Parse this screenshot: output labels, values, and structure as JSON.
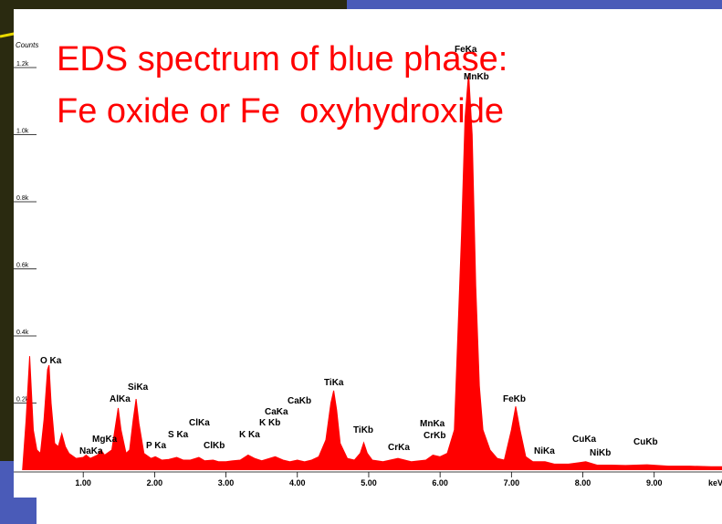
{
  "chart_data": {
    "type": "area",
    "title_lines": [
      "EDS spectrum of blue phase:",
      "Fe oxide or Fe  oxyhydroxide"
    ],
    "y_label": "Counts",
    "x_label": "keV",
    "color": "#ff0000",
    "xlim": [
      0,
      9.95
    ],
    "ylim": [
      0,
      1200
    ],
    "xticks": [
      {
        "value": 1,
        "label": "1.00"
      },
      {
        "value": 2,
        "label": "2.00"
      },
      {
        "value": 3,
        "label": "3.00"
      },
      {
        "value": 4,
        "label": "4.00"
      },
      {
        "value": 5,
        "label": "5.00"
      },
      {
        "value": 6,
        "label": "6.00"
      },
      {
        "value": 7,
        "label": "7.00"
      },
      {
        "value": 8,
        "label": "8.00"
      },
      {
        "value": 9,
        "label": "9.00"
      }
    ],
    "yticks": [
      {
        "value": 200,
        "label": "0.2k"
      },
      {
        "value": 400,
        "label": "0.4k"
      },
      {
        "value": 600,
        "label": "0.6k"
      },
      {
        "value": 800,
        "label": "0.8k"
      },
      {
        "value": 1000,
        "label": "1.0k"
      },
      {
        "value": 1200,
        "label": "1.2k"
      }
    ],
    "x": [
      0.15,
      0.2,
      0.25,
      0.3,
      0.35,
      0.4,
      0.45,
      0.5,
      0.52,
      0.55,
      0.6,
      0.65,
      0.7,
      0.75,
      0.8,
      0.9,
      1.0,
      1.04,
      1.1,
      1.2,
      1.25,
      1.3,
      1.4,
      1.45,
      1.49,
      1.53,
      1.6,
      1.65,
      1.7,
      1.74,
      1.78,
      1.85,
      1.95,
      2.01,
      2.1,
      2.2,
      2.31,
      2.4,
      2.5,
      2.62,
      2.7,
      2.82,
      2.9,
      3.0,
      3.1,
      3.2,
      3.31,
      3.4,
      3.5,
      3.69,
      3.8,
      3.9,
      4.0,
      4.1,
      4.2,
      4.3,
      4.4,
      4.47,
      4.51,
      4.55,
      4.6,
      4.7,
      4.8,
      4.88,
      4.93,
      4.98,
      5.05,
      5.2,
      5.41,
      5.6,
      5.8,
      5.9,
      6.0,
      6.1,
      6.2,
      6.3,
      6.35,
      6.4,
      6.45,
      6.5,
      6.55,
      6.6,
      6.7,
      6.8,
      6.9,
      7.0,
      7.06,
      7.12,
      7.2,
      7.3,
      7.47,
      7.6,
      7.8,
      8.04,
      8.2,
      8.4,
      8.6,
      8.9,
      9.2,
      9.5,
      9.8,
      9.95
    ],
    "values": [
      0,
      150,
      340,
      120,
      60,
      50,
      150,
      300,
      313,
      200,
      80,
      70,
      109,
      70,
      50,
      35,
      38,
      45,
      35,
      45,
      60,
      45,
      60,
      130,
      185,
      120,
      50,
      60,
      150,
      212,
      140,
      50,
      35,
      40,
      30,
      32,
      38,
      30,
      30,
      38,
      28,
      30,
      25,
      25,
      28,
      30,
      45,
      35,
      28,
      40,
      30,
      25,
      30,
      25,
      30,
      40,
      90,
      200,
      237,
      180,
      80,
      35,
      30,
      50,
      82,
      50,
      30,
      25,
      35,
      25,
      30,
      45,
      40,
      50,
      120,
      700,
      1050,
      1183,
      1000,
      550,
      250,
      120,
      60,
      35,
      30,
      120,
      190,
      120,
      40,
      25,
      25,
      18,
      18,
      25,
      15,
      15,
      14,
      16,
      12,
      12,
      10,
      10
    ],
    "peak_labels": [
      "FeKa",
      "MnKb",
      "O Ka",
      "NaKa",
      "MgKa",
      "AlKa",
      "SiKa",
      "P Ka",
      "S Ka",
      "ClKa",
      "ClKb",
      "K Ka",
      "K Kb",
      "CaKa",
      "CaKb",
      "TiKa",
      "TiKb",
      "CrKa",
      "MnKa",
      "CrKb",
      "FeKb",
      "NiKa",
      "CuKa",
      "NiKb",
      "CuKb"
    ]
  }
}
